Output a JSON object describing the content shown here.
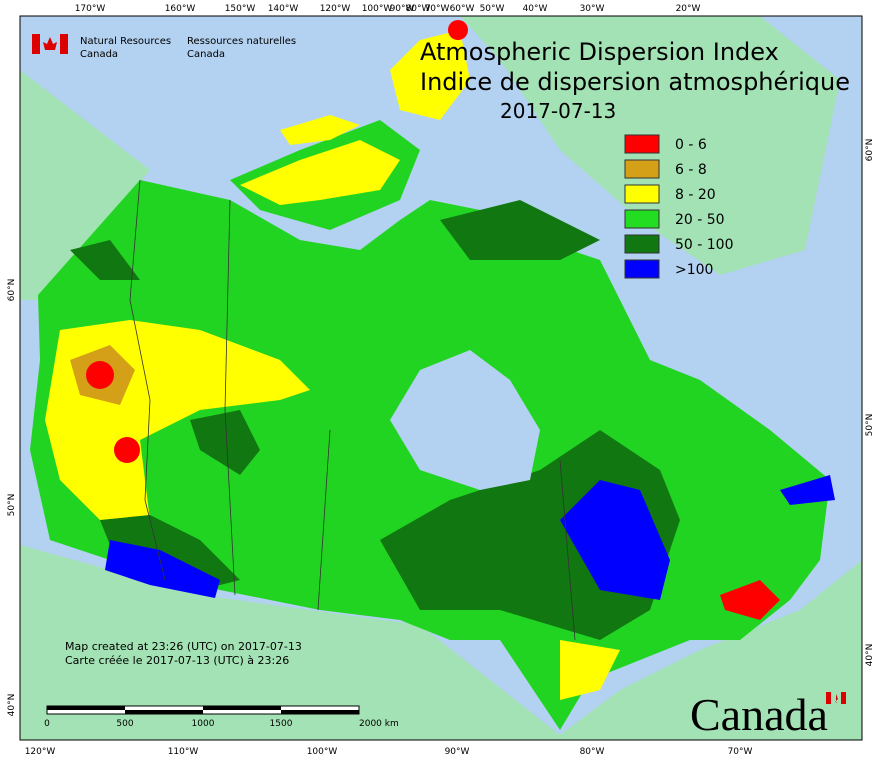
{
  "header": {
    "agency_en": [
      "Natural Resources",
      "Canada"
    ],
    "agency_fr": [
      "Ressources naturelles",
      "Canada"
    ],
    "title": [
      "Atmospheric Dispersion Index",
      "Indice de dispersion atmosphérique"
    ],
    "date": "2017-07-13"
  },
  "legend": [
    {
      "label": "0 - 6",
      "color": "#ff0000"
    },
    {
      "label": "6 - 8",
      "color": "#d4a017"
    },
    {
      "label": "8 - 20",
      "color": "#ffff00"
    },
    {
      "label": "20 - 50",
      "color": "#22dd22"
    },
    {
      "label": "50 - 100",
      "color": "#117711"
    },
    {
      "label": ">100",
      "color": "#0000ff"
    }
  ],
  "graticule": {
    "top": [
      "170°W",
      "160°W",
      "150°W",
      "140°W",
      "120°W",
      "100°W",
      "90°W",
      "80°W",
      "70°W",
      "60°W",
      "50°W",
      "40°W",
      "30°W",
      "20°W"
    ],
    "bottom": [
      "120°W",
      "110°W",
      "100°W",
      "90°W",
      "80°W",
      "70°W"
    ],
    "left": [
      "60°N",
      "50°N",
      "40°N"
    ],
    "right": [
      "60°N",
      "50°N",
      "40°N"
    ]
  },
  "footer": {
    "created": [
      "Map created at 23:26 (UTC) on 2017-07-13",
      "Carte créée le 2017-07-13 (UTC) à 23:26"
    ],
    "scale": [
      "0",
      "500",
      "1000",
      "1500",
      "2000 km"
    ],
    "wordmark": "Canada"
  }
}
